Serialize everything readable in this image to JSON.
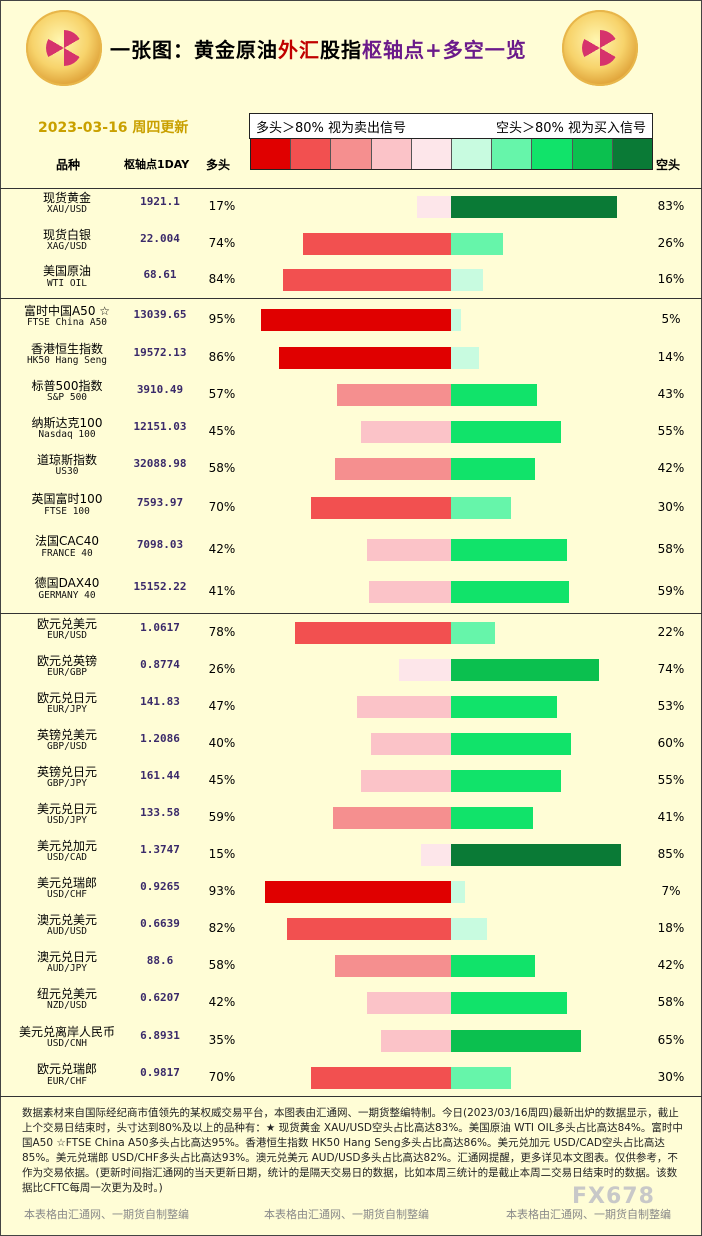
{
  "header": {
    "title_black": "一张图：黄金原油",
    "title_red": "外汇",
    "title_black2": "股指",
    "title_purple": "枢轴点+多空一览",
    "date": "2023-03-16 周四更新",
    "legend_left": "多头＞80% 视为卖出信号",
    "legend_right": "空头＞80% 视为买入信号",
    "col_name": "品种",
    "col_pivot": "枢轴点1DAY",
    "col_long": "多头",
    "col_short": "空头"
  },
  "colors": {
    "scale": [
      "#e00000",
      "#f25050",
      "#f58f8f",
      "#fbc3c8",
      "#fde6ea",
      "#c8fbe0",
      "#66f5aa",
      "#11e36a",
      "#0bc04f",
      "#0a7a36"
    ]
  },
  "chart_data": {
    "type": "bar",
    "rows": [
      {
        "cn": "现货黄金",
        "en": "XAU/USD",
        "pivot": "1921.1",
        "long": 17,
        "short": 83
      },
      {
        "cn": "现货白银",
        "en": "XAG/USD",
        "pivot": "22.004",
        "long": 74,
        "short": 26
      },
      {
        "cn": "美国原油",
        "en": "WTI OIL",
        "pivot": "68.61",
        "long": 84,
        "short": 16
      },
      {
        "cn": "富时中国A50 ☆",
        "en": "FTSE China A50",
        "pivot": "13039.65",
        "long": 95,
        "short": 5
      },
      {
        "cn": "香港恒生指数",
        "en": "HK50 Hang Seng",
        "pivot": "19572.13",
        "long": 86,
        "short": 14
      },
      {
        "cn": "标普500指数",
        "en": "S&P 500",
        "pivot": "3910.49",
        "long": 57,
        "short": 43
      },
      {
        "cn": "纳斯达克100",
        "en": "Nasdaq 100",
        "pivot": "12151.03",
        "long": 45,
        "short": 55
      },
      {
        "cn": "道琼斯指数",
        "en": "US30",
        "pivot": "32088.98",
        "long": 58,
        "short": 42
      },
      {
        "cn": "英国富时100",
        "en": "FTSE 100",
        "pivot": "7593.97",
        "long": 70,
        "short": 30
      },
      {
        "cn": "法国CAC40",
        "en": "FRANCE 40",
        "pivot": "7098.03",
        "long": 42,
        "short": 58
      },
      {
        "cn": "德国DAX40",
        "en": "GERMANY 40",
        "pivot": "15152.22",
        "long": 41,
        "short": 59
      },
      {
        "cn": "欧元兑美元",
        "en": "EUR/USD",
        "pivot": "1.0617",
        "long": 78,
        "short": 22
      },
      {
        "cn": "欧元兑英镑",
        "en": "EUR/GBP",
        "pivot": "0.8774",
        "long": 26,
        "short": 74
      },
      {
        "cn": "欧元兑日元",
        "en": "EUR/JPY",
        "pivot": "141.83",
        "long": 47,
        "short": 53
      },
      {
        "cn": "英镑兑美元",
        "en": "GBP/USD",
        "pivot": "1.2086",
        "long": 40,
        "short": 60
      },
      {
        "cn": "英镑兑日元",
        "en": "GBP/JPY",
        "pivot": "161.44",
        "long": 45,
        "short": 55
      },
      {
        "cn": "美元兑日元",
        "en": "USD/JPY",
        "pivot": "133.58",
        "long": 59,
        "short": 41
      },
      {
        "cn": "美元兑加元",
        "en": "USD/CAD",
        "pivot": "1.3747",
        "long": 15,
        "short": 85
      },
      {
        "cn": "美元兑瑞郎",
        "en": "USD/CHF",
        "pivot": "0.9265",
        "long": 93,
        "short": 7
      },
      {
        "cn": "澳元兑美元",
        "en": "AUD/USD",
        "pivot": "0.6639",
        "long": 82,
        "short": 18
      },
      {
        "cn": "澳元兑日元",
        "en": "AUD/JPY",
        "pivot": "88.6",
        "long": 58,
        "short": 42
      },
      {
        "cn": "纽元兑美元",
        "en": "NZD/USD",
        "pivot": "0.6207",
        "long": 42,
        "short": 58
      },
      {
        "cn": "美元兑离岸人民币",
        "en": "USD/CNH",
        "pivot": "6.8931",
        "long": 35,
        "short": 65
      },
      {
        "cn": "欧元兑瑞郎",
        "en": "EUR/CHF",
        "pivot": "0.9817",
        "long": 70,
        "short": 30
      }
    ]
  },
  "note": "数据素材来自国际经纪商市值领先的某权威交易平台，本图表由汇通网、一期货整编特制。今日(2023/03/16周四)最新出炉的数据显示，截止上个交易日结束时，头寸达到80%及以上的品种有：★ 现货黄金 XAU/USD空头占比高达83%。美国原油 WTI OIL多头占比高达84%。富时中国A50 ☆FTSE China A50多头占比高达95%。香港恒生指数 HK50 Hang Seng多头占比高达86%。美元兑加元 USD/CAD空头占比高达85%。美元兑瑞郎 USD/CHF多头占比高达93%。澳元兑美元 AUD/USD多头占比高达82%。汇通网提醒，更多详见本文图表。仅供参考，不作为交易依据。(更新时间指汇通网的当天更新日期，统计的是隔天交易日的数据，比如本周三统计的是截止本周二交易日结束时的数据。该数据比CFTC每周一次更为及时。)",
  "footer": "本表格由汇通网、一期货自制整编",
  "watermark": "FX678"
}
